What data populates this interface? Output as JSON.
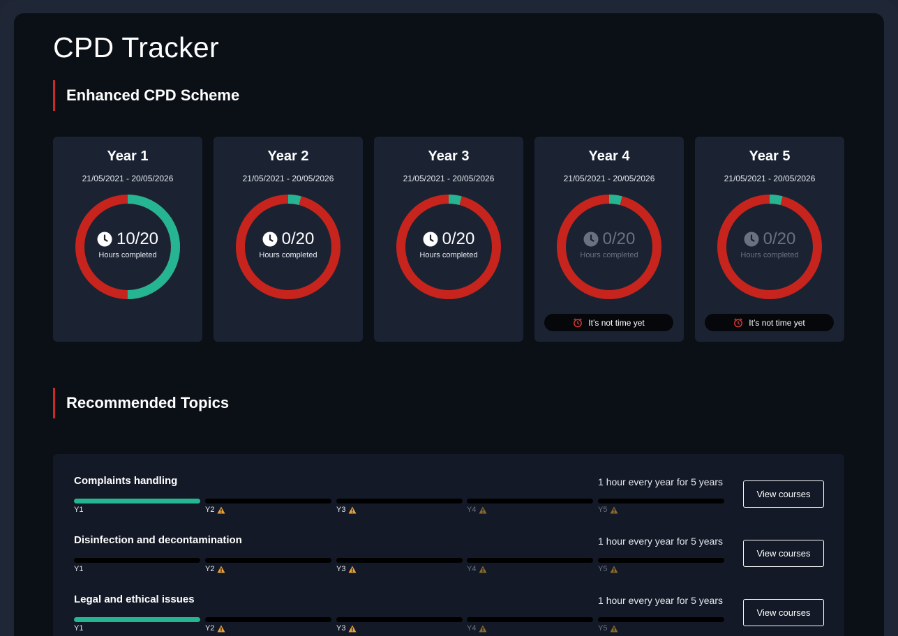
{
  "page": {
    "title": "CPD Tracker"
  },
  "sections": {
    "scheme": "Enhanced CPD Scheme",
    "topics": "Recommended Topics"
  },
  "colors": {
    "done": "#26b592",
    "remaining": "#c8241e",
    "accent": "#cc2a25"
  },
  "years": [
    {
      "title": "Year 1",
      "dates": "21/05/2021 - 20/05/2026",
      "value": "10/20",
      "label": "Hours completed",
      "completed": 10,
      "total": 20,
      "dimmed": false,
      "notice": ""
    },
    {
      "title": "Year 2",
      "dates": "21/05/2021 - 20/05/2026",
      "value": "0/20",
      "label": "Hours completed",
      "completed": 0,
      "total": 20,
      "dimmed": false,
      "notice": ""
    },
    {
      "title": "Year 3",
      "dates": "21/05/2021 - 20/05/2026",
      "value": "0/20",
      "label": "Hours completed",
      "completed": 0,
      "total": 20,
      "dimmed": false,
      "notice": ""
    },
    {
      "title": "Year 4",
      "dates": "21/05/2021 - 20/05/2026",
      "value": "0/20",
      "label": "Hours completed",
      "completed": 0,
      "total": 20,
      "dimmed": true,
      "notice": "It’s not time yet"
    },
    {
      "title": "Year 5",
      "dates": "21/05/2021 - 20/05/2026",
      "value": "0/20",
      "label": "Hours completed",
      "completed": 0,
      "total": 20,
      "dimmed": true,
      "notice": "It’s not time yet"
    }
  ],
  "topics": [
    {
      "name": "Complaints handling",
      "requirement": "1 hour every year for 5 years",
      "button": "View courses",
      "segments": [
        {
          "label": "Y1",
          "done": true,
          "warning": false,
          "dim": false
        },
        {
          "label": "Y2",
          "done": false,
          "warning": true,
          "dim": false
        },
        {
          "label": "Y3",
          "done": false,
          "warning": true,
          "dim": false
        },
        {
          "label": "Y4",
          "done": false,
          "warning": true,
          "dim": true
        },
        {
          "label": "Y5",
          "done": false,
          "warning": true,
          "dim": true
        }
      ]
    },
    {
      "name": "Disinfection and decontamination",
      "requirement": "1 hour every year for 5 years",
      "button": "View courses",
      "segments": [
        {
          "label": "Y1",
          "done": false,
          "warning": false,
          "dim": false
        },
        {
          "label": "Y2",
          "done": false,
          "warning": true,
          "dim": false
        },
        {
          "label": "Y3",
          "done": false,
          "warning": true,
          "dim": false
        },
        {
          "label": "Y4",
          "done": false,
          "warning": true,
          "dim": true
        },
        {
          "label": "Y5",
          "done": false,
          "warning": true,
          "dim": true
        }
      ]
    },
    {
      "name": "Legal and ethical issues",
      "requirement": "1 hour every year for 5 years",
      "button": "View courses",
      "segments": [
        {
          "label": "Y1",
          "done": true,
          "warning": false,
          "dim": false
        },
        {
          "label": "Y2",
          "done": false,
          "warning": true,
          "dim": false
        },
        {
          "label": "Y3",
          "done": false,
          "warning": true,
          "dim": false
        },
        {
          "label": "Y4",
          "done": false,
          "warning": true,
          "dim": true
        },
        {
          "label": "Y5",
          "done": false,
          "warning": true,
          "dim": true
        }
      ]
    }
  ]
}
